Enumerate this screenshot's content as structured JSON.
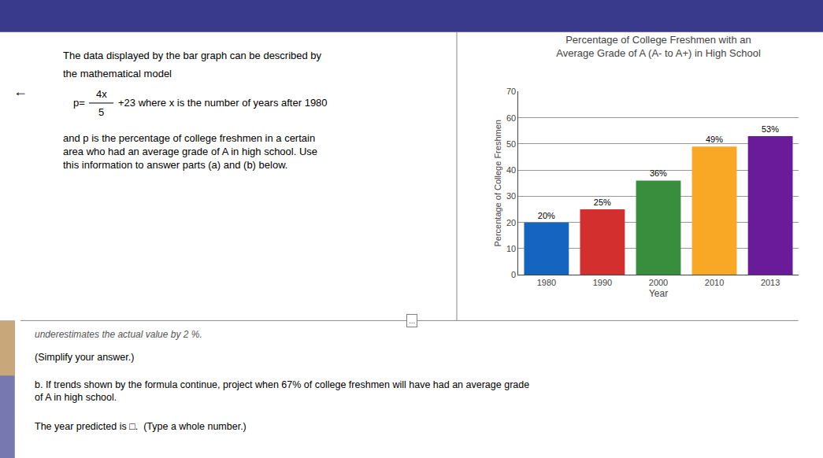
{
  "chart_data": {
    "type": "bar",
    "title": "Percentage of College Freshmen with an\nAverage Grade of A (A- to A+) in High School",
    "xlabel": "Year",
    "ylabel": "Percentage of College Freshmen",
    "categories": [
      "1980",
      "1990",
      "2000",
      "2010",
      "2013"
    ],
    "values": [
      20,
      25,
      36,
      49,
      53
    ],
    "value_labels": [
      "20%",
      "25%",
      "36%",
      "49%",
      "53%"
    ],
    "data_labels": true,
    "colors": [
      "#1565C0",
      "#D32F2F",
      "#388E3C",
      "#F9A825",
      "#6A1B9A"
    ],
    "ylim": [
      0,
      70
    ],
    "yticks": [
      0,
      10,
      20,
      30,
      40,
      50,
      60,
      70
    ],
    "grid": true,
    "annotations": [
      "←",
      "The data displayed by the bar graph can be described by",
      "the mathematical model",
      "p=",
      "4x",
      "5",
      "+23 where x is the number of years after 1980",
      "and p is the percentage of college freshmen in a certain\narea who had an average grade of A in high school. Use\nthis information to answer parts (a) and (b) below.",
      "...",
      "underestimates the actual value by 2 %.",
      "(Simplify your answer.)",
      "b. If trends shown by the formula continue, project when 67% of college freshmen will have had an average grade\nof A in high school.",
      "The year predicted is □.  (Type a whole number.)"
    ]
  }
}
